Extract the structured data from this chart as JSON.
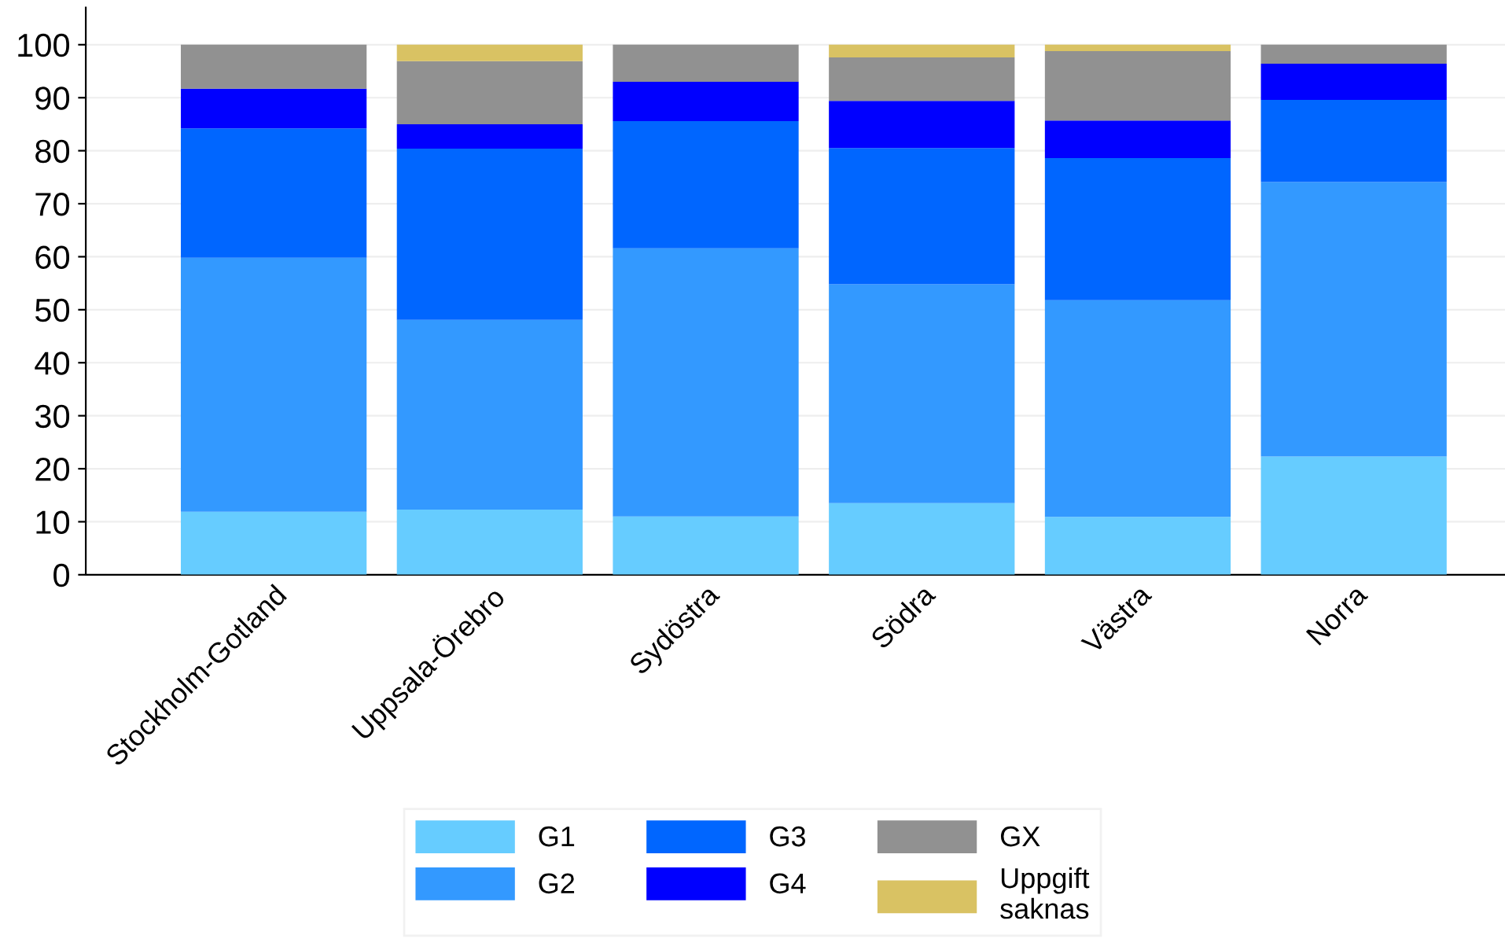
{
  "chart_data": {
    "type": "bar",
    "stacked": true,
    "categories": [
      "Stockholm-Gotland",
      "Uppsala-Örebro",
      "Sydöstra",
      "Södra",
      "Västra",
      "Norra"
    ],
    "series": [
      {
        "name": "G1",
        "color": "#66ccff",
        "values": [
          11.9,
          12.3,
          11.0,
          13.5,
          10.9,
          22.3
        ]
      },
      {
        "name": "G2",
        "color": "#3399ff",
        "values": [
          47.9,
          35.8,
          50.6,
          41.3,
          40.9,
          51.8
        ]
      },
      {
        "name": "G3",
        "color": "#0066ff",
        "values": [
          24.4,
          32.3,
          24.0,
          25.7,
          26.8,
          15.5
        ]
      },
      {
        "name": "G4",
        "color": "#0000ff",
        "values": [
          7.5,
          4.6,
          7.4,
          8.9,
          7.1,
          6.8
        ]
      },
      {
        "name": "GX",
        "color": "#919191",
        "values": [
          8.3,
          11.9,
          7.0,
          8.2,
          13.1,
          3.6
        ]
      },
      {
        "name": "Uppgift\nsaknas",
        "color": "#d9c263",
        "values": [
          0,
          3.1,
          0,
          2.4,
          1.2,
          0
        ]
      }
    ],
    "ylim": [
      0,
      107
    ],
    "yticks": [
      0,
      10,
      20,
      30,
      40,
      50,
      60,
      70,
      80,
      90,
      100
    ],
    "grid": "y",
    "legend": "bottom"
  }
}
